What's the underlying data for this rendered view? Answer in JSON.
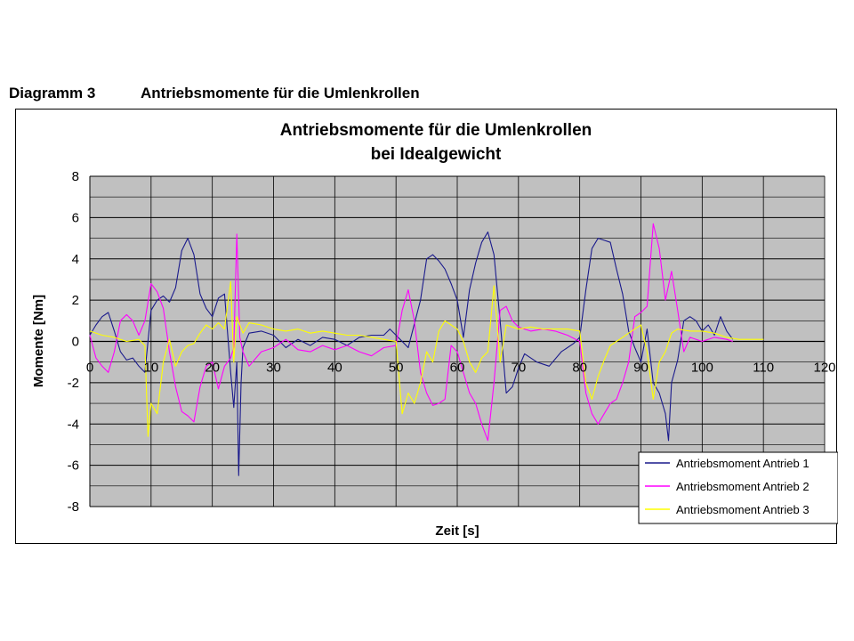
{
  "caption": {
    "number": "Diagramm 3",
    "text": "Antriebsmomente für die Umlenkrollen"
  },
  "chart_data": {
    "type": "line",
    "title": [
      "Antriebsmomente für die Umlenkrollen",
      "bei Idealgewicht"
    ],
    "xlabel": "Zeit [s]",
    "ylabel": "Momente [Nm]",
    "xlim": [
      0,
      120
    ],
    "ylim": [
      -8,
      8
    ],
    "x_ticks": [
      0,
      10,
      20,
      30,
      40,
      50,
      60,
      70,
      80,
      90,
      100,
      110,
      120
    ],
    "y_ticks": [
      8,
      6,
      4,
      2,
      0,
      -2,
      -4,
      -6,
      -8
    ],
    "grid": true,
    "legend_position": "bottom-right",
    "colors": {
      "plot_background": "#c0c0c0",
      "grid": "#000000"
    },
    "series": [
      {
        "name": "Antriebsmoment Antrieb 1",
        "color": "#1a1a8c",
        "points": [
          [
            0,
            0.3
          ],
          [
            1,
            0.8
          ],
          [
            2,
            1.2
          ],
          [
            3,
            1.4
          ],
          [
            4,
            0.5
          ],
          [
            5,
            -0.5
          ],
          [
            6,
            -0.9
          ],
          [
            7,
            -0.8
          ],
          [
            8,
            -1.2
          ],
          [
            9,
            -1.5
          ],
          [
            10,
            1.5
          ],
          [
            11,
            2.0
          ],
          [
            12,
            2.2
          ],
          [
            13,
            1.9
          ],
          [
            14,
            2.6
          ],
          [
            15,
            4.4
          ],
          [
            16,
            5.0
          ],
          [
            17,
            4.2
          ],
          [
            18,
            2.3
          ],
          [
            19,
            1.6
          ],
          [
            20,
            1.2
          ],
          [
            21,
            2.1
          ],
          [
            22,
            2.3
          ],
          [
            23,
            -1.5
          ],
          [
            23.5,
            -3.2
          ],
          [
            24,
            -1.0
          ],
          [
            24.3,
            -6.5
          ],
          [
            24.7,
            -2.0
          ],
          [
            25,
            -0.3
          ],
          [
            26,
            0.4
          ],
          [
            28,
            0.5
          ],
          [
            30,
            0.3
          ],
          [
            32,
            -0.3
          ],
          [
            34,
            0.1
          ],
          [
            36,
            -0.2
          ],
          [
            38,
            0.2
          ],
          [
            40,
            0.1
          ],
          [
            42,
            -0.2
          ],
          [
            44,
            0.2
          ],
          [
            46,
            0.3
          ],
          [
            48,
            0.3
          ],
          [
            49,
            0.6
          ],
          [
            50,
            0.3
          ],
          [
            52,
            -0.3
          ],
          [
            54,
            2.0
          ],
          [
            55,
            4.0
          ],
          [
            56,
            4.2
          ],
          [
            57,
            3.9
          ],
          [
            58,
            3.5
          ],
          [
            59,
            2.8
          ],
          [
            60,
            2.0
          ],
          [
            61,
            0.2
          ],
          [
            62,
            2.5
          ],
          [
            63,
            3.8
          ],
          [
            64,
            4.8
          ],
          [
            65,
            5.3
          ],
          [
            66,
            4.2
          ],
          [
            67,
            1.0
          ],
          [
            68,
            -2.5
          ],
          [
            69,
            -2.2
          ],
          [
            70,
            -1.3
          ],
          [
            71,
            -0.6
          ],
          [
            73,
            -1.0
          ],
          [
            75,
            -1.2
          ],
          [
            77,
            -0.5
          ],
          [
            79,
            -0.1
          ],
          [
            80,
            0.2
          ],
          [
            81,
            2.5
          ],
          [
            82,
            4.5
          ],
          [
            83,
            5.0
          ],
          [
            84,
            4.9
          ],
          [
            85,
            4.8
          ],
          [
            86,
            3.5
          ],
          [
            87,
            2.3
          ],
          [
            88,
            0.5
          ],
          [
            89,
            -0.3
          ],
          [
            90,
            -1.0
          ],
          [
            91,
            0.6
          ],
          [
            92,
            -2.0
          ],
          [
            93,
            -2.5
          ],
          [
            94,
            -3.5
          ],
          [
            94.5,
            -4.8
          ],
          [
            95,
            -2.0
          ],
          [
            96,
            -0.9
          ],
          [
            97,
            1.0
          ],
          [
            98,
            1.2
          ],
          [
            99,
            1.0
          ],
          [
            100,
            0.5
          ],
          [
            101,
            0.8
          ],
          [
            102,
            0.3
          ],
          [
            103,
            1.2
          ],
          [
            104,
            0.5
          ],
          [
            105,
            0.1
          ]
        ]
      },
      {
        "name": "Antriebsmoment Antrieb 2",
        "color": "#ff00ff",
        "points": [
          [
            0,
            0.3
          ],
          [
            1,
            -0.8
          ],
          [
            2,
            -1.2
          ],
          [
            3,
            -1.5
          ],
          [
            4,
            -0.5
          ],
          [
            5,
            1.0
          ],
          [
            6,
            1.3
          ],
          [
            7,
            1.0
          ],
          [
            8,
            0.3
          ],
          [
            9,
            1.0
          ],
          [
            10,
            2.8
          ],
          [
            11,
            2.4
          ],
          [
            12,
            1.6
          ],
          [
            13,
            -0.5
          ],
          [
            14,
            -2.2
          ],
          [
            15,
            -3.4
          ],
          [
            16,
            -3.6
          ],
          [
            17,
            -3.9
          ],
          [
            18,
            -2.2
          ],
          [
            19,
            -1.2
          ],
          [
            20,
            -1.0
          ],
          [
            21,
            -2.3
          ],
          [
            22,
            -1.2
          ],
          [
            23,
            -0.8
          ],
          [
            23.5,
            -0.3
          ],
          [
            24,
            5.2
          ],
          [
            24.5,
            0.2
          ],
          [
            25,
            -0.5
          ],
          [
            26,
            -1.2
          ],
          [
            28,
            -0.5
          ],
          [
            30,
            -0.3
          ],
          [
            32,
            0.1
          ],
          [
            34,
            -0.4
          ],
          [
            36,
            -0.5
          ],
          [
            38,
            -0.2
          ],
          [
            40,
            -0.4
          ],
          [
            42,
            -0.2
          ],
          [
            44,
            -0.5
          ],
          [
            46,
            -0.7
          ],
          [
            48,
            -0.3
          ],
          [
            50,
            -0.2
          ],
          [
            51,
            1.5
          ],
          [
            52,
            2.5
          ],
          [
            53,
            1.0
          ],
          [
            54,
            -1.5
          ],
          [
            55,
            -2.5
          ],
          [
            56,
            -3.1
          ],
          [
            57,
            -3.0
          ],
          [
            58,
            -2.8
          ],
          [
            59,
            -0.2
          ],
          [
            60,
            -0.5
          ],
          [
            61,
            -1.5
          ],
          [
            62,
            -2.5
          ],
          [
            63,
            -3.0
          ],
          [
            64,
            -4.0
          ],
          [
            65,
            -4.8
          ],
          [
            66,
            -2.0
          ],
          [
            67,
            1.5
          ],
          [
            68,
            1.7
          ],
          [
            69,
            1.0
          ],
          [
            70,
            0.7
          ],
          [
            72,
            0.5
          ],
          [
            74,
            0.6
          ],
          [
            76,
            0.5
          ],
          [
            78,
            0.3
          ],
          [
            80,
            0.0
          ],
          [
            81,
            -2.5
          ],
          [
            82,
            -3.5
          ],
          [
            83,
            -4.0
          ],
          [
            84,
            -3.5
          ],
          [
            85,
            -3.0
          ],
          [
            86,
            -2.8
          ],
          [
            87,
            -2.0
          ],
          [
            88,
            -1.0
          ],
          [
            89,
            1.2
          ],
          [
            90,
            1.4
          ],
          [
            91,
            1.7
          ],
          [
            92,
            5.7
          ],
          [
            93,
            4.5
          ],
          [
            94,
            2.0
          ],
          [
            95,
            3.4
          ],
          [
            96,
            1.5
          ],
          [
            97,
            -0.5
          ],
          [
            98,
            0.2
          ],
          [
            100,
            0.0
          ],
          [
            102,
            0.2
          ],
          [
            104,
            0.1
          ],
          [
            105,
            0.0
          ]
        ]
      },
      {
        "name": "Antriebsmoment Antrieb 3",
        "color": "#ffff00",
        "points": [
          [
            0,
            0.5
          ],
          [
            2,
            0.3
          ],
          [
            4,
            0.2
          ],
          [
            6,
            0.0
          ],
          [
            8,
            0.1
          ],
          [
            9,
            -0.2
          ],
          [
            9.5,
            -4.6
          ],
          [
            10,
            -3.0
          ],
          [
            11,
            -3.5
          ],
          [
            12,
            -1.0
          ],
          [
            13,
            0.1
          ],
          [
            14,
            -1.2
          ],
          [
            15,
            -0.5
          ],
          [
            16,
            -0.2
          ],
          [
            17,
            -0.1
          ],
          [
            18,
            0.4
          ],
          [
            19,
            0.8
          ],
          [
            20,
            0.6
          ],
          [
            21,
            0.9
          ],
          [
            22,
            0.6
          ],
          [
            23,
            2.9
          ],
          [
            23.5,
            -1.0
          ],
          [
            24,
            1.2
          ],
          [
            25,
            0.4
          ],
          [
            26,
            0.9
          ],
          [
            28,
            0.8
          ],
          [
            30,
            0.6
          ],
          [
            32,
            0.5
          ],
          [
            34,
            0.6
          ],
          [
            36,
            0.4
          ],
          [
            38,
            0.5
          ],
          [
            40,
            0.4
          ],
          [
            42,
            0.3
          ],
          [
            44,
            0.3
          ],
          [
            46,
            0.2
          ],
          [
            48,
            0.1
          ],
          [
            50,
            0.0
          ],
          [
            51,
            -3.5
          ],
          [
            52,
            -2.5
          ],
          [
            53,
            -3.0
          ],
          [
            54,
            -2.0
          ],
          [
            55,
            -0.5
          ],
          [
            56,
            -1.0
          ],
          [
            57,
            0.5
          ],
          [
            58,
            1.0
          ],
          [
            59,
            0.8
          ],
          [
            60,
            0.6
          ],
          [
            61,
            0.0
          ],
          [
            62,
            -1.0
          ],
          [
            63,
            -1.5
          ],
          [
            64,
            -0.8
          ],
          [
            65,
            -0.5
          ],
          [
            66,
            2.7
          ],
          [
            67,
            -1.0
          ],
          [
            68,
            0.8
          ],
          [
            69,
            0.7
          ],
          [
            70,
            0.6
          ],
          [
            72,
            0.7
          ],
          [
            74,
            0.6
          ],
          [
            76,
            0.6
          ],
          [
            78,
            0.6
          ],
          [
            80,
            0.5
          ],
          [
            81,
            -2.0
          ],
          [
            82,
            -2.8
          ],
          [
            83,
            -1.7
          ],
          [
            84,
            -0.9
          ],
          [
            85,
            -0.2
          ],
          [
            86,
            0.0
          ],
          [
            87,
            0.2
          ],
          [
            88,
            0.4
          ],
          [
            89,
            0.6
          ],
          [
            90,
            0.8
          ],
          [
            91,
            -0.5
          ],
          [
            92,
            -2.8
          ],
          [
            93,
            -1.0
          ],
          [
            94,
            -0.5
          ],
          [
            95,
            0.4
          ],
          [
            96,
            0.6
          ],
          [
            98,
            0.5
          ],
          [
            100,
            0.5
          ],
          [
            102,
            0.4
          ],
          [
            104,
            0.2
          ],
          [
            106,
            0.1
          ],
          [
            108,
            0.1
          ],
          [
            110,
            0.1
          ]
        ]
      }
    ]
  }
}
